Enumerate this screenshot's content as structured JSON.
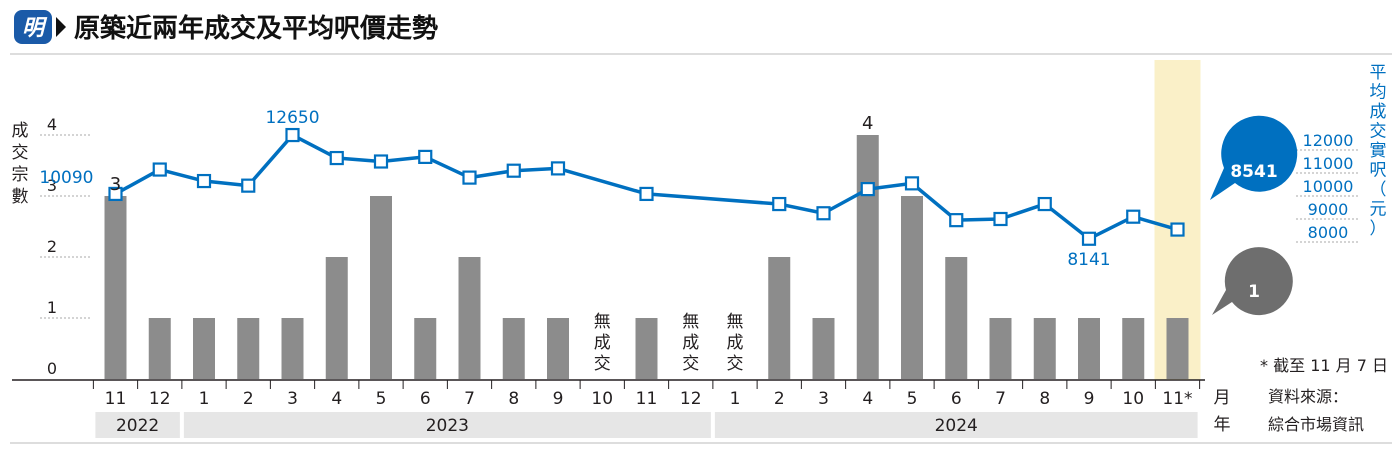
{
  "header": {
    "logo_char": "明",
    "title": "原築近兩年成交及平均呎價走勢"
  },
  "footnote": "* 截至 11 月 7 日",
  "source": [
    "資料來源：",
    "綜合市場資訊"
  ],
  "month_unit": [
    "月",
    "年"
  ],
  "colors": {
    "bar": "#8c8c8c",
    "line": "#0070c0",
    "highlight": "#faf0c8",
    "year_band": "#e6e6e6",
    "text": "#231f20"
  },
  "chart_data": {
    "type": "bar+line",
    "categories": [
      "11",
      "12",
      "1",
      "2",
      "3",
      "4",
      "5",
      "6",
      "7",
      "8",
      "9",
      "10",
      "11",
      "12",
      "1",
      "2",
      "3",
      "4",
      "5",
      "6",
      "7",
      "8",
      "9",
      "10",
      "11*"
    ],
    "years": [
      {
        "label": "2022",
        "from": 0,
        "to": 1
      },
      {
        "label": "2023",
        "from": 2,
        "to": 13
      },
      {
        "label": "2024",
        "from": 14,
        "to": 24
      }
    ],
    "left_axis": {
      "label": "成交宗數",
      "ticks": [
        0,
        1,
        2,
        3,
        4
      ],
      "range": [
        0,
        4
      ]
    },
    "right_axis": {
      "label": "平均成交實呎（元）",
      "ticks": [
        8000,
        9000,
        10000,
        11000,
        12000
      ],
      "range": [
        8000,
        12000
      ]
    },
    "series": [
      {
        "name": "成交宗數",
        "kind": "bar",
        "values": [
          3,
          1,
          1,
          1,
          1,
          2,
          3,
          1,
          2,
          1,
          1,
          0,
          1,
          0,
          0,
          2,
          1,
          4,
          3,
          2,
          1,
          1,
          1,
          1,
          1
        ]
      },
      {
        "name": "平均成交實呎",
        "kind": "line",
        "values": [
          10090,
          11150,
          10650,
          10450,
          12650,
          11650,
          11500,
          11700,
          10800,
          11100,
          11200,
          null,
          10090,
          null,
          null,
          9650,
          9250,
          10300,
          10550,
          8950,
          9000,
          9650,
          8141,
          9100,
          8541
        ]
      }
    ],
    "no_deal_label": [
      "無",
      "成",
      "交"
    ],
    "highlight_index": 24,
    "data_labels": [
      {
        "series": "bar",
        "index": 0,
        "text": "3"
      },
      {
        "series": "bar",
        "index": 17,
        "text": "4"
      },
      {
        "series": "line",
        "index": 0,
        "text": "10090"
      },
      {
        "series": "line",
        "index": 4,
        "text": "12650"
      },
      {
        "series": "line",
        "index": 22,
        "text": "8141"
      }
    ],
    "callouts": [
      {
        "series": "line",
        "text": "8541"
      },
      {
        "series": "bar",
        "text": "1"
      }
    ]
  }
}
